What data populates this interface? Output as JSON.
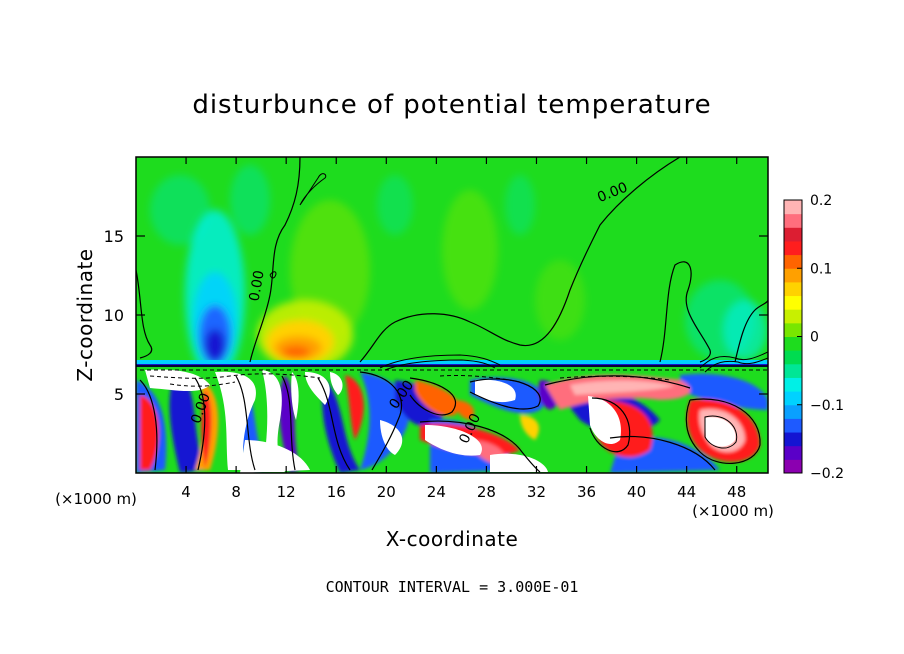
{
  "chart_data": {
    "type": "heatmap",
    "title": "disturbunce of potential temperature",
    "xlabel": "X-coordinate",
    "ylabel": "Z-coordinate",
    "x_unit_left": "(×1000 m)",
    "x_unit_right": "(×1000 m)",
    "xlim": [
      0,
      50.5
    ],
    "ylim": [
      0,
      20
    ],
    "x_ticks": [
      4,
      8,
      12,
      16,
      20,
      24,
      28,
      32,
      36,
      40,
      44,
      48
    ],
    "y_ticks": [
      5,
      10,
      15
    ],
    "footer": "CONTOUR INTERVAL = 3.000E-01",
    "contour_labels": [
      {
        "text": "0.00",
        "x": 38.2,
        "z": 17.5,
        "angle": -22
      },
      {
        "text": "0.00",
        "x": 10.0,
        "z": 11.8,
        "angle": -80
      },
      {
        "text": "0.00",
        "x": 5.5,
        "z": 4.0,
        "angle": -70
      },
      {
        "text": "0.00",
        "x": 21.5,
        "z": 4.8,
        "angle": -55
      },
      {
        "text": "0.00",
        "x": 27.0,
        "z": 2.7,
        "angle": -65
      }
    ],
    "colorbar": {
      "ticks": [
        "0.2",
        "0.1",
        "0",
        "−0.1",
        "−0.2"
      ],
      "tick_values": [
        0.2,
        0.1,
        0,
        -0.1,
        -0.2
      ],
      "range": [
        -0.2,
        0.2
      ],
      "colors": [
        "#8b00b0",
        "#5a00c8",
        "#1414d2",
        "#1e5aff",
        "#0aa0ff",
        "#00d2ff",
        "#00f0e6",
        "#00e696",
        "#00dc50",
        "#1edc1e",
        "#78e600",
        "#c8f000",
        "#ffff00",
        "#ffd200",
        "#ffa000",
        "#ff6400",
        "#ff1e1e",
        "#dc1e32",
        "#ff6e7d",
        "#ffb4b4"
      ]
    },
    "grid": false,
    "colors": {
      "background_field": "#1edc1e",
      "lower_layer_white": "#ffffff"
    }
  }
}
